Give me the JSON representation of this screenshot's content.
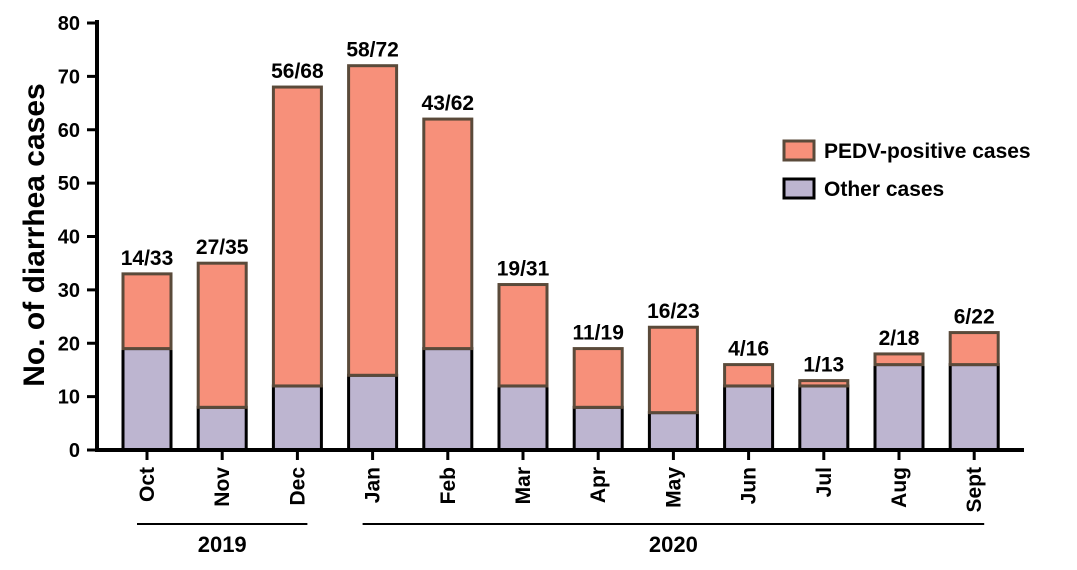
{
  "chart_data": {
    "type": "bar",
    "stacked": true,
    "categories": [
      "Oct",
      "Nov",
      "Dec",
      "Jan",
      "Feb",
      "Mar",
      "Apr",
      "May",
      "Jun",
      "Jul",
      "Aug",
      "Sept"
    ],
    "series": [
      {
        "name": "Other cases",
        "values": [
          19,
          8,
          12,
          14,
          19,
          12,
          8,
          7,
          12,
          12,
          16,
          16
        ],
        "color": "#BDB5D0"
      },
      {
        "name": "PEDV-positive cases",
        "values": [
          14,
          27,
          56,
          58,
          43,
          19,
          11,
          16,
          4,
          1,
          2,
          6
        ],
        "color": "#F7907A"
      }
    ],
    "totals": [
      33,
      35,
      68,
      72,
      62,
      31,
      19,
      23,
      16,
      13,
      18,
      22
    ],
    "data_labels": [
      "14/33",
      "27/35",
      "56/68",
      "58/72",
      "43/62",
      "19/31",
      "11/19",
      "16/23",
      "4/16",
      "1/13",
      "2/18",
      "6/22"
    ],
    "ylabel": "No. of diarrhea cases",
    "xlabel": "",
    "ylim": [
      0,
      80
    ],
    "yticks": [
      0,
      10,
      20,
      30,
      40,
      50,
      60,
      70,
      80
    ],
    "legend": {
      "position": "right",
      "entries": [
        "PEDV-positive cases",
        "Other cases"
      ]
    },
    "year_groups": [
      {
        "label": "2019",
        "from": "Oct",
        "to": "Dec"
      },
      {
        "label": "2020",
        "from": "Jan",
        "to": "Sept"
      }
    ],
    "grid": false
  }
}
